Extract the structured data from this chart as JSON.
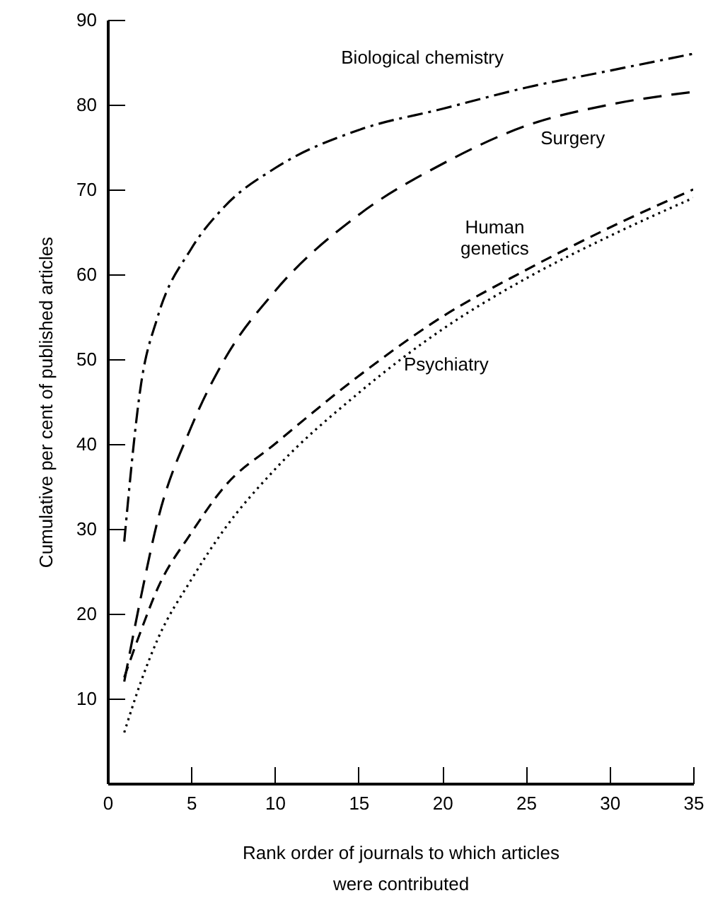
{
  "chart_data": {
    "type": "line",
    "xlabel": "Rank order of journals to which articles were contributed",
    "ylabel": "Cumulative per cent of published articles",
    "x": [
      1,
      2,
      3,
      5,
      7,
      10,
      15,
      20,
      25,
      30,
      35
    ],
    "series": [
      {
        "name": "Biological chemistry",
        "color": "#000000",
        "line_style": "dashdot",
        "values": [
          28.5,
          47,
          55,
          63,
          68,
          72.5,
          77,
          79.5,
          82,
          84,
          86
        ]
      },
      {
        "name": "Surgery",
        "color": "#000000",
        "line_style": "dashed",
        "values": [
          12,
          22,
          31,
          42,
          50,
          58,
          67,
          73,
          77.5,
          80,
          81.5
        ]
      },
      {
        "name": "Human genetics",
        "color": "#000000",
        "line_style": "dashed",
        "values": [
          12.5,
          18,
          23,
          29.5,
          35,
          40,
          48,
          55,
          60.5,
          65.5,
          70
        ]
      },
      {
        "name": "Psychiatry",
        "color": "#000000",
        "line_style": "dotted",
        "values": [
          6,
          12,
          17,
          24,
          30,
          37,
          46,
          53.5,
          59.5,
          64.5,
          69
        ]
      }
    ],
    "xlim": [
      0,
      35
    ],
    "xticks": [
      0,
      5,
      10,
      15,
      20,
      25,
      30,
      35
    ],
    "ylim": [
      0,
      90
    ],
    "yticks": [
      {
        "value": 0,
        "label": null
      },
      10,
      20,
      30,
      40,
      50,
      60,
      70,
      80,
      90
    ],
    "grid": false,
    "legend": false,
    "marker": "none"
  }
}
